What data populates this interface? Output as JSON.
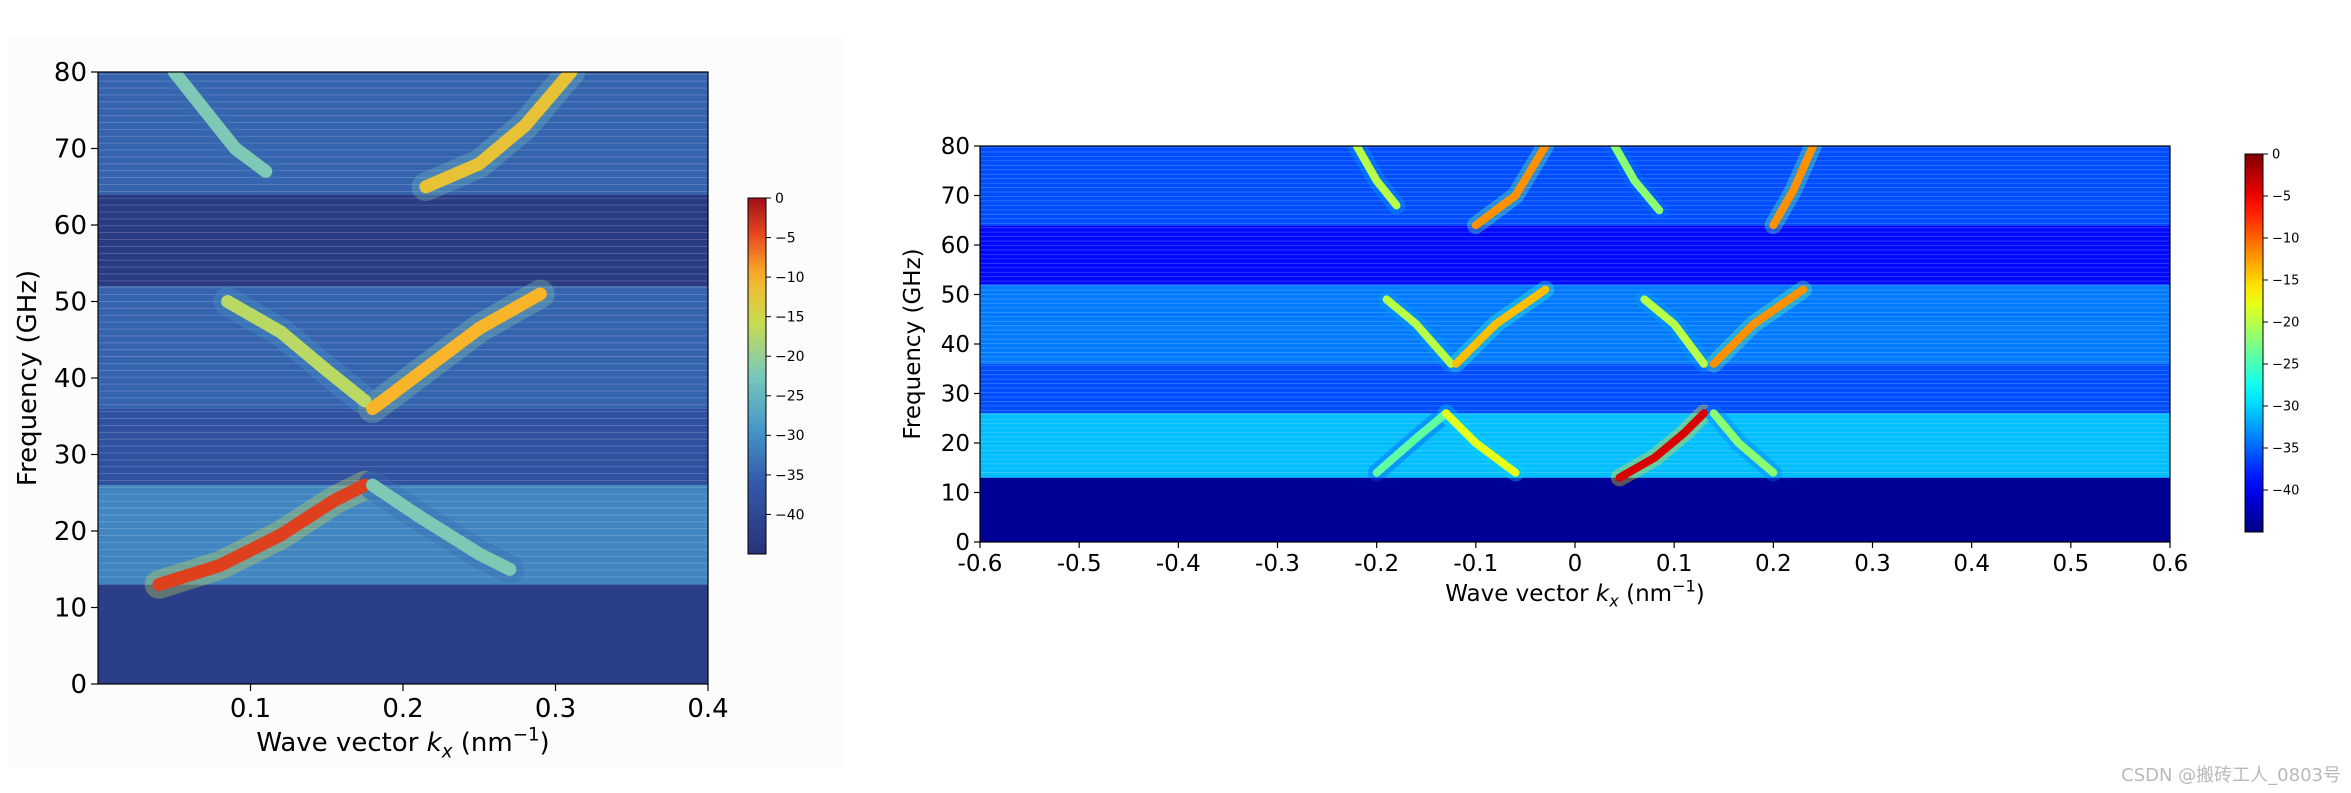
{
  "chart_data": [
    {
      "type": "heatmap",
      "title": "",
      "xlabel": "Wave vector",
      "xlabel_symbol": "k",
      "xlabel_subscript": "x",
      "xlabel_unit_prefix": "(nm",
      "xlabel_unit_exp": "−1",
      "xlabel_unit_suffix": ")",
      "ylabel": "Frequency (GHz)",
      "xlim": [
        0.0,
        0.4
      ],
      "ylim": [
        0,
        80
      ],
      "xticks": [
        0.1,
        0.2,
        0.3,
        0.4
      ],
      "xtick_labels": [
        "0.1",
        "0.2",
        "0.3",
        "0.4"
      ],
      "yticks": [
        0,
        10,
        20,
        30,
        40,
        50,
        60,
        70,
        80
      ],
      "ytick_labels": [
        "0",
        "10",
        "20",
        "30",
        "40",
        "50",
        "60",
        "70",
        "80"
      ],
      "colorbar": {
        "range": [
          -45,
          0
        ],
        "ticks": [
          0,
          -5,
          -10,
          -15,
          -20,
          -25,
          -30,
          -35,
          -40
        ],
        "tick_labels": [
          "0",
          "−5",
          "−10",
          "−15",
          "−20",
          "−25",
          "−30",
          "−35",
          "−40"
        ]
      },
      "bands": [
        {
          "ymin": 0,
          "ymax": 13,
          "level": -42
        },
        {
          "ymin": 13,
          "ymax": 26,
          "level": -31
        },
        {
          "ymin": 26,
          "ymax": 36,
          "level": -38
        },
        {
          "ymin": 36,
          "ymax": 52,
          "level": -35
        },
        {
          "ymin": 52,
          "ymax": 64,
          "level": -43
        },
        {
          "ymin": 64,
          "ymax": 80,
          "level": -35
        }
      ],
      "curves": [
        {
          "name": "branch-1",
          "x": [
            0.04,
            0.08,
            0.12,
            0.155,
            0.175
          ],
          "y": [
            13,
            15.5,
            19.5,
            24,
            26
          ],
          "level": -4
        },
        {
          "name": "branch-2",
          "x": [
            0.18,
            0.21,
            0.25,
            0.27
          ],
          "y": [
            26,
            22,
            17,
            15
          ],
          "level": -22
        },
        {
          "name": "branch-3",
          "x": [
            0.085,
            0.12,
            0.15,
            0.175
          ],
          "y": [
            50,
            46,
            41,
            37
          ],
          "level": -17
        },
        {
          "name": "branch-4",
          "x": [
            0.18,
            0.21,
            0.25,
            0.29
          ],
          "y": [
            36,
            40.5,
            46.5,
            51
          ],
          "level": -10
        },
        {
          "name": "branch-5",
          "x": [
            0.05,
            0.07,
            0.09,
            0.11
          ],
          "y": [
            80,
            75,
            70,
            67
          ],
          "level": -22
        },
        {
          "name": "branch-6",
          "x": [
            0.215,
            0.25,
            0.28,
            0.31
          ],
          "y": [
            65,
            68,
            73,
            80
          ],
          "level": -12
        }
      ]
    },
    {
      "type": "heatmap",
      "title": "",
      "xlabel": "Wave vector",
      "xlabel_symbol": "k",
      "xlabel_subscript": "x",
      "xlabel_unit_prefix": "(nm",
      "xlabel_unit_exp": "−1",
      "xlabel_unit_suffix": ")",
      "ylabel": "Frequency (GHz)",
      "xlim": [
        -0.6,
        0.6
      ],
      "ylim": [
        0,
        80
      ],
      "xticks": [
        -0.6,
        -0.5,
        -0.4,
        -0.3,
        -0.2,
        -0.1,
        0,
        0.1,
        0.2,
        0.3,
        0.4,
        0.5,
        0.6
      ],
      "xtick_labels": [
        "-0.6",
        "-0.5",
        "-0.4",
        "-0.3",
        "-0.2",
        "-0.1",
        "0",
        "0.1",
        "0.2",
        "0.3",
        "0.4",
        "0.5",
        "0.6"
      ],
      "yticks": [
        0,
        10,
        20,
        30,
        40,
        50,
        60,
        70,
        80
      ],
      "ytick_labels": [
        "0",
        "10",
        "20",
        "30",
        "40",
        "50",
        "60",
        "70",
        "80"
      ],
      "colorbar": {
        "range": [
          -45,
          0
        ],
        "ticks": [
          0,
          -5,
          -10,
          -15,
          -20,
          -25,
          -30,
          -35,
          -40
        ],
        "tick_labels": [
          "0",
          "−5",
          "−10",
          "−15",
          "−20",
          "−25",
          "−30",
          "−35",
          "−40"
        ]
      },
      "bands": [
        {
          "ymin": 0,
          "ymax": 13,
          "level": -44
        },
        {
          "ymin": 13,
          "ymax": 26,
          "level": -31
        },
        {
          "ymin": 26,
          "ymax": 36,
          "level": -36
        },
        {
          "ymin": 36,
          "ymax": 52,
          "level": -34
        },
        {
          "ymin": 52,
          "ymax": 64,
          "level": -39
        },
        {
          "ymin": 64,
          "ymax": 80,
          "level": -36
        }
      ],
      "curves": [
        {
          "name": "branch-1",
          "x": [
            -0.2,
            -0.16,
            -0.13
          ],
          "y": [
            14,
            21,
            26
          ],
          "level": -24
        },
        {
          "name": "branch-2",
          "x": [
            -0.13,
            -0.1,
            -0.06
          ],
          "y": [
            26,
            20,
            14
          ],
          "level": -18
        },
        {
          "name": "branch-3",
          "x": [
            0.045,
            0.08,
            0.11,
            0.13
          ],
          "y": [
            13,
            17,
            22,
            26
          ],
          "level": -4
        },
        {
          "name": "branch-4",
          "x": [
            0.14,
            0.165,
            0.2
          ],
          "y": [
            26,
            20,
            14
          ],
          "level": -22
        },
        {
          "name": "branch-5",
          "x": [
            -0.19,
            -0.16,
            -0.125
          ],
          "y": [
            49,
            44,
            36
          ],
          "level": -20
        },
        {
          "name": "branch-6",
          "x": [
            -0.12,
            -0.08,
            -0.03
          ],
          "y": [
            36,
            44,
            51
          ],
          "level": -14
        },
        {
          "name": "branch-7",
          "x": [
            0.07,
            0.1,
            0.13
          ],
          "y": [
            49,
            44,
            36
          ],
          "level": -20
        },
        {
          "name": "branch-8",
          "x": [
            0.14,
            0.18,
            0.23
          ],
          "y": [
            36,
            44,
            51
          ],
          "level": -12
        },
        {
          "name": "branch-9",
          "x": [
            -0.22,
            -0.2,
            -0.18
          ],
          "y": [
            80,
            73,
            68
          ],
          "level": -20
        },
        {
          "name": "branch-10",
          "x": [
            -0.1,
            -0.06,
            -0.03
          ],
          "y": [
            64,
            70,
            80
          ],
          "level": -12
        },
        {
          "name": "branch-11",
          "x": [
            0.04,
            0.06,
            0.085
          ],
          "y": [
            80,
            73,
            67
          ],
          "level": -22
        },
        {
          "name": "branch-12",
          "x": [
            0.2,
            0.22,
            0.24
          ],
          "y": [
            64,
            71,
            80
          ],
          "level": -12
        }
      ]
    }
  ],
  "watermark": "CSDN @搬砖工人_0803号"
}
